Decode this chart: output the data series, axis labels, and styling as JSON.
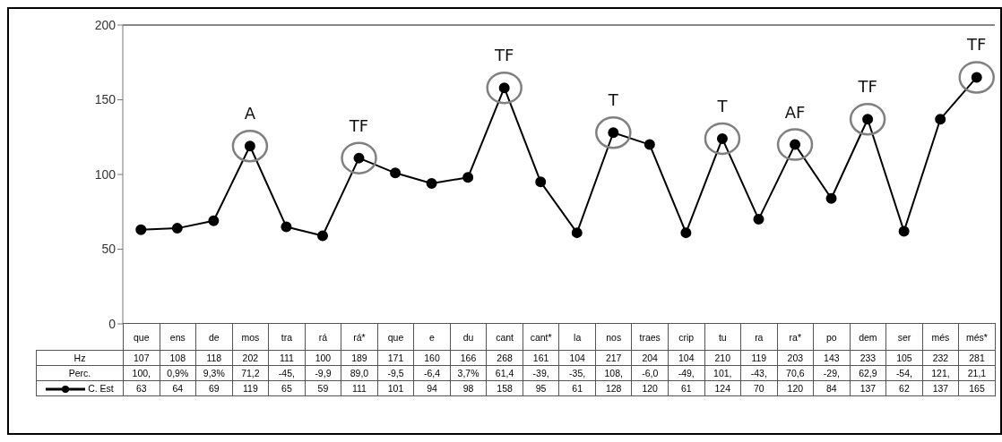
{
  "chart_data": {
    "type": "line",
    "categories": [
      "que",
      "ens",
      "de",
      "mos",
      "tra",
      "rá",
      "rá*",
      "que",
      "e",
      "du",
      "cant",
      "cant*",
      "la",
      "nos",
      "traes",
      "crip",
      "tu",
      "ra",
      "ra*",
      "po",
      "dem",
      "ser",
      "més",
      "més*"
    ],
    "series": [
      {
        "name": "Hz",
        "type": "other",
        "values": [
          null,
          null,
          null,
          null,
          null,
          null,
          null,
          null,
          null,
          null,
          null,
          null,
          null,
          null,
          null,
          null,
          null,
          null,
          null,
          null,
          null,
          null,
          null,
          null
        ],
        "value_labels": [
          "107",
          "108",
          "118",
          "202",
          "111",
          "100",
          "189",
          "171",
          "160",
          "166",
          "268",
          "161",
          "104",
          "217",
          "204",
          "104",
          "210",
          "119",
          "203",
          "143",
          "233",
          "105",
          "232",
          "281"
        ]
      },
      {
        "name": "Perc.",
        "type": "other",
        "values": [
          null,
          null,
          null,
          null,
          null,
          null,
          null,
          null,
          null,
          null,
          null,
          null,
          null,
          null,
          null,
          null,
          null,
          null,
          null,
          null,
          null,
          null,
          null,
          null
        ],
        "value_labels": [
          "100,",
          "0,9%",
          "9,3%",
          "71,2",
          "-45,",
          "-9,9",
          "89,0",
          "-9,5",
          "-6,4",
          "3,7%",
          "61,4",
          "-39,",
          "-35,",
          "108,",
          "-6,0",
          "-49,",
          "101,",
          "-43,",
          "70,6",
          "-29,",
          "62,9",
          "-54,",
          "121,",
          "21,1"
        ]
      },
      {
        "name": "C. Est",
        "color": "#000000",
        "marker": "circle",
        "values": [
          63,
          64,
          69,
          119,
          65,
          59,
          111,
          101,
          94,
          98,
          158,
          95,
          61,
          128,
          120,
          61,
          124,
          70,
          120,
          84,
          137,
          62,
          137,
          165
        ],
        "value_labels": [
          "63",
          "64",
          "69",
          "119",
          "65",
          "59",
          "111",
          "101",
          "94",
          "98",
          "158",
          "95",
          "61",
          "128",
          "120",
          "61",
          "124",
          "70",
          "120",
          "84",
          "137",
          "62",
          "137",
          "165"
        ]
      },
      {
        "type": "scatter",
        "color": "#808080",
        "values": [
          null,
          null,
          null,
          119,
          null,
          null,
          111,
          null,
          null,
          null,
          158,
          null,
          null,
          128,
          null,
          null,
          124,
          null,
          120,
          null,
          137,
          null,
          null,
          165
        ]
      }
    ],
    "ylim": [
      0,
      200
    ],
    "yticks": [
      0,
      50,
      100,
      150,
      200
    ],
    "legend": "bottom",
    "annotations": [
      {
        "text": "A",
        "x": "mos",
        "y": 119
      },
      {
        "text": "TF",
        "x": "rá*",
        "y": 111
      },
      {
        "text": "TF",
        "x": "cant",
        "y": 158
      },
      {
        "text": "T",
        "x": "nos",
        "y": 128
      },
      {
        "text": "T",
        "x": "tu",
        "y": 124
      },
      {
        "text": "AF",
        "x": "ra*",
        "y": 120
      },
      {
        "text": "TF",
        "x": "dem",
        "y": 137
      },
      {
        "text": "TF",
        "x": "més*",
        "y": 165
      }
    ]
  }
}
